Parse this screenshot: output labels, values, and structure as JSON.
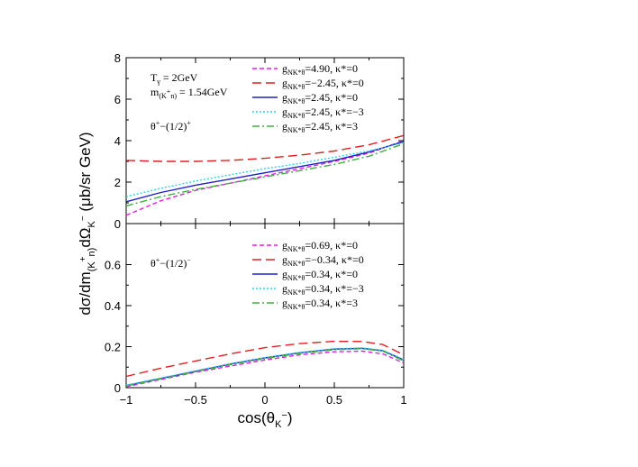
{
  "chart_data": {
    "type": "line",
    "xlabel": "cos(θ",
    "xlabel_sub": "K",
    "xlabel_sup": "−",
    "xlabel_close": ")",
    "ylabel_main": "dσ/dm",
    "ylabel_sub1": "(K",
    "ylabel_sup1": "+",
    "ylabel_sub1b": "n)",
    "ylabel_mid": "dΩ",
    "ylabel_sub2": "K",
    "ylabel_sup2": "−",
    "ylabel_unit": " (μb/sr GeV)",
    "xlim": [
      -1,
      1
    ],
    "x_ticks": [
      "−1",
      "−0.5",
      "0",
      "0.5",
      "1"
    ],
    "x_tick_values": [
      -1,
      -0.5,
      0,
      0.5,
      1
    ],
    "panels": [
      {
        "id": "top",
        "ylim": [
          0,
          8
        ],
        "y_ticks": [
          "0",
          "2",
          "4",
          "6",
          "8"
        ],
        "y_tick_values": [
          0,
          2,
          4,
          6,
          8
        ],
        "annotations": {
          "line1_main": "T",
          "line1_sub": "γ",
          "line1_rest": " = 2GeV",
          "line2_main": "m",
          "line2_sub_a": "(K",
          "line2_sup": "+",
          "line2_sub_b": "n)",
          "line2_rest": " = 1.54GeV",
          "line3_main": "θ",
          "line3_sup1": "+",
          "line3_mid": "−(1/2)",
          "line3_sup2": "+"
        },
        "legend": [
          {
            "g": "g",
            "g_sub": "NK*θ",
            "value": "=4.90, κ*=0",
            "color": "#e020e0",
            "dash": "5,3"
          },
          {
            "g": "g",
            "g_sub": "NK*θ",
            "value": "=−2.45, κ*=0",
            "color": "#e02020",
            "dash": "10,5"
          },
          {
            "g": "g",
            "g_sub": "NK*θ",
            "value": "=2.45, κ*=0",
            "color": "#2020c0",
            "dash": ""
          },
          {
            "g": "g",
            "g_sub": "NK*θ",
            "value": "=2.45, κ*=−3",
            "color": "#30d0e8",
            "dash": "2,2"
          },
          {
            "g": "g",
            "g_sub": "NK*θ",
            "value": "=2.45, κ*=3",
            "color": "#40b040",
            "dash": "8,3,2,3"
          }
        ],
        "series": [
          {
            "x": [
              -1,
              -0.75,
              -0.5,
              -0.25,
              0,
              0.25,
              0.5,
              0.75,
              1
            ],
            "y": [
              0.4,
              1.1,
              1.6,
              1.95,
              2.3,
              2.65,
              3.0,
              3.4,
              4.0
            ]
          },
          {
            "x": [
              -1,
              -0.75,
              -0.5,
              -0.25,
              0,
              0.25,
              0.5,
              0.75,
              1
            ],
            "y": [
              3.05,
              3.0,
              3.0,
              3.05,
              3.15,
              3.3,
              3.5,
              3.8,
              4.25
            ]
          },
          {
            "x": [
              -1,
              -0.75,
              -0.5,
              -0.25,
              0,
              0.25,
              0.5,
              0.75,
              1
            ],
            "y": [
              1.05,
              1.5,
              1.85,
              2.15,
              2.45,
              2.75,
              3.05,
              3.45,
              3.95
            ]
          },
          {
            "x": [
              -1,
              -0.75,
              -0.5,
              -0.25,
              0,
              0.25,
              0.5,
              0.75,
              1
            ],
            "y": [
              1.3,
              1.7,
              2.05,
              2.35,
              2.65,
              2.9,
              3.2,
              3.5,
              3.9
            ]
          },
          {
            "x": [
              -1,
              -0.75,
              -0.5,
              -0.25,
              0,
              0.25,
              0.5,
              0.75,
              1
            ],
            "y": [
              0.85,
              1.3,
              1.65,
              1.95,
              2.25,
              2.55,
              2.85,
              3.25,
              3.85
            ]
          }
        ]
      },
      {
        "id": "bottom",
        "ylim": [
          0,
          0.8
        ],
        "y_ticks": [
          "0",
          "0.2",
          "0.4",
          "0.6"
        ],
        "y_tick_values": [
          0,
          0.2,
          0.4,
          0.6
        ],
        "annotations": {
          "line3_main": "θ",
          "line3_sup1": "+",
          "line3_mid": "−(1/2)",
          "line3_sup2": "−"
        },
        "legend": [
          {
            "g": "g",
            "g_sub": "NK*θ",
            "value": "=0.69, κ*=0",
            "color": "#e020e0",
            "dash": "5,3"
          },
          {
            "g": "g",
            "g_sub": "NK*θ",
            "value": "=−0.34, κ*=0",
            "color": "#e02020",
            "dash": "10,5"
          },
          {
            "g": "g",
            "g_sub": "NK*θ",
            "value": "=0.34, κ*=0",
            "color": "#2020c0",
            "dash": ""
          },
          {
            "g": "g",
            "g_sub": "NK*θ",
            "value": "=0.34, κ*=−3",
            "color": "#30d0e8",
            "dash": "2,2"
          },
          {
            "g": "g",
            "g_sub": "NK*θ",
            "value": "=0.34, κ*=3",
            "color": "#40b040",
            "dash": "8,3,2,3"
          }
        ],
        "series": [
          {
            "x": [
              -1,
              -0.75,
              -0.5,
              -0.25,
              0,
              0.25,
              0.5,
              0.7,
              0.85,
              1
            ],
            "y": [
              0.005,
              0.04,
              0.075,
              0.105,
              0.135,
              0.16,
              0.175,
              0.178,
              0.165,
              0.12
            ]
          },
          {
            "x": [
              -1,
              -0.75,
              -0.5,
              -0.25,
              0,
              0.25,
              0.5,
              0.7,
              0.85,
              1
            ],
            "y": [
              0.055,
              0.095,
              0.13,
              0.165,
              0.195,
              0.215,
              0.226,
              0.225,
              0.21,
              0.16
            ]
          },
          {
            "x": [
              -1,
              -0.75,
              -0.5,
              -0.25,
              0,
              0.25,
              0.5,
              0.7,
              0.85,
              1
            ],
            "y": [
              0.01,
              0.045,
              0.08,
              0.115,
              0.145,
              0.17,
              0.188,
              0.192,
              0.18,
              0.135
            ]
          },
          {
            "x": [
              -1,
              -0.75,
              -0.5,
              -0.25,
              0,
              0.25,
              0.5,
              0.7,
              0.85,
              1
            ],
            "y": [
              0.012,
              0.047,
              0.082,
              0.117,
              0.147,
              0.172,
              0.19,
              0.194,
              0.182,
              0.138
            ]
          },
          {
            "x": [
              -1,
              -0.75,
              -0.5,
              -0.25,
              0,
              0.25,
              0.5,
              0.7,
              0.85,
              1
            ],
            "y": [
              0.008,
              0.043,
              0.078,
              0.112,
              0.142,
              0.167,
              0.185,
              0.19,
              0.178,
              0.13
            ]
          }
        ]
      }
    ]
  }
}
